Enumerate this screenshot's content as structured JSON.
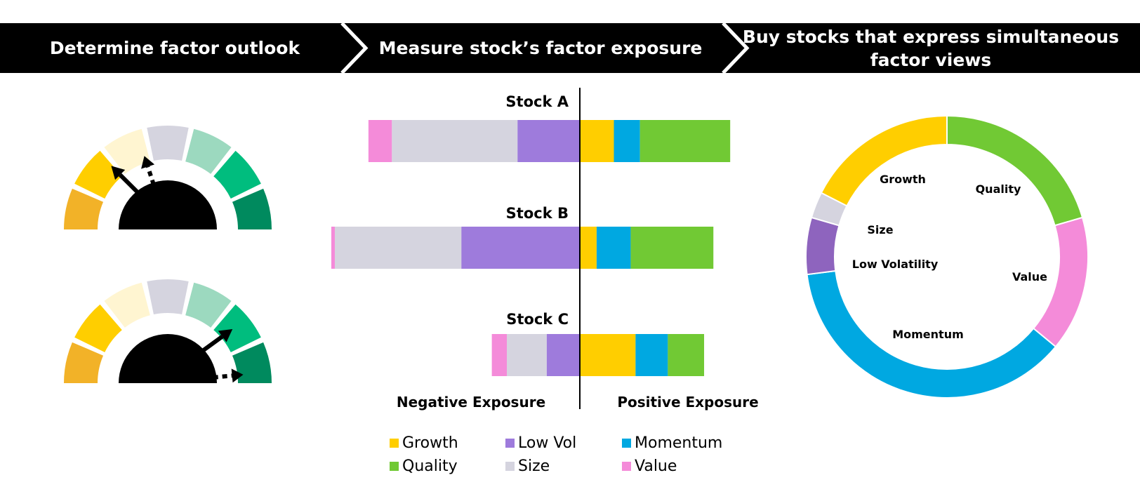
{
  "header": {
    "steps": [
      {
        "label_lines": [
          "Determine factor outlook"
        ]
      },
      {
        "label_lines": [
          "Measure stock’s factor exposure"
        ]
      },
      {
        "label_lines": [
          "Buy stocks that express simultaneous",
          "factor views"
        ]
      }
    ]
  },
  "colors": {
    "Growth": "#FFCE00",
    "Low Vol": "#9E7BDC",
    "Momentum": "#00A8E1",
    "Quality": "#71C934",
    "Size": "#D5D4DF",
    "Value": "#F48BD9",
    "header_bg": "#000000",
    "gauge_segments": [
      "#F2B228",
      "#FFCE00",
      "#FFF5D1",
      "#D5D4DF",
      "#9CD9BF",
      "#00BD7E",
      "#008A5E"
    ]
  },
  "chart_data": [
    {
      "type": "bar",
      "orientation": "horizontal-diverging",
      "categories": [
        "Stock A",
        "Stock B",
        "Stock C"
      ],
      "series": [
        {
          "name": "Value",
          "values": [
            -5.3,
            -0.8,
            -3.4
          ]
        },
        {
          "name": "Size",
          "values": [
            -28.4,
            -28.6,
            -9.0
          ]
        },
        {
          "name": "Low Vol",
          "values": [
            -14.1,
            -26.8,
            -7.5
          ]
        },
        {
          "name": "Growth",
          "values": [
            7.7,
            3.8,
            12.6
          ]
        },
        {
          "name": "Momentum",
          "values": [
            5.9,
            7.7,
            7.3
          ]
        },
        {
          "name": "Quality",
          "values": [
            20.4,
            18.7,
            8.2
          ]
        }
      ],
      "left_label": "Negative Exposure",
      "right_label": "Positive Exposure",
      "legend": {
        "placement": "bottom",
        "items": [
          "Growth",
          "Low Vol",
          "Momentum",
          "Quality",
          "Size",
          "Value"
        ]
      }
    },
    {
      "type": "pie",
      "subtype": "donut",
      "slices": [
        {
          "label": "Quality",
          "value": 20.5
        },
        {
          "label": "Value",
          "value": 15.5
        },
        {
          "label": "Momentum",
          "value": 37.0
        },
        {
          "label": "Low Volatility",
          "value": 6.5
        },
        {
          "label": "Size",
          "value": 3.0
        },
        {
          "label": "Growth",
          "value": 17.5
        }
      ]
    }
  ],
  "gauges": [
    {
      "segments": 7,
      "solid_pointer_level": 0.25,
      "dashed_pointer_level": 0.4
    },
    {
      "segments": 7,
      "solid_pointer_level": 0.8,
      "dashed_pointer_level": 0.97
    }
  ]
}
